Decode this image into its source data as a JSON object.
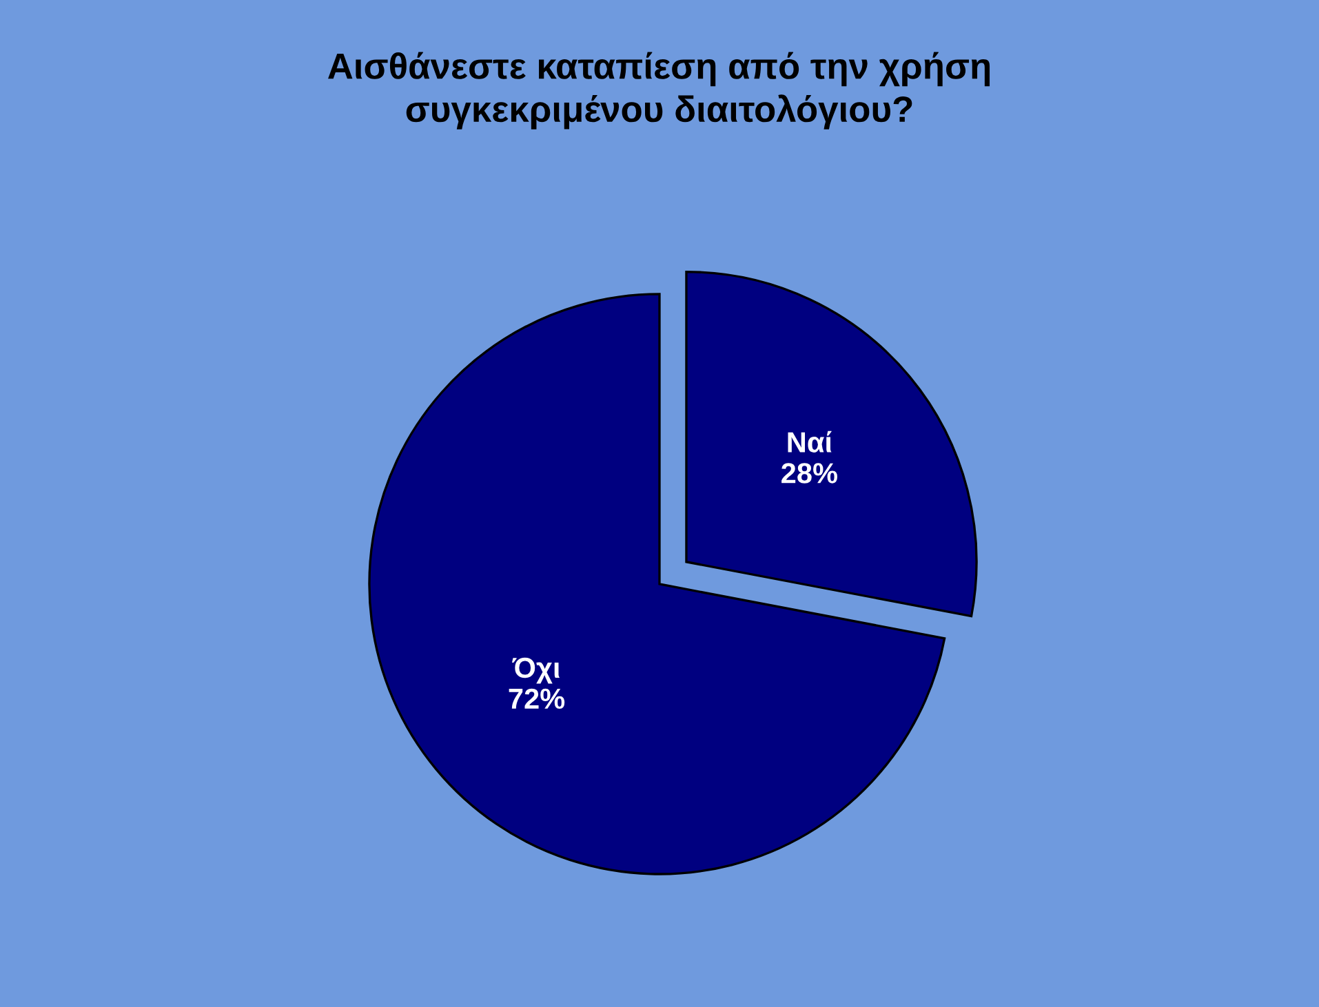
{
  "chart_data": {
    "type": "pie",
    "title": "Αισθάνεστε καταπίεση από την χρήση\nσυγκεκριμένου διαιτολόγιου?",
    "categories": [
      "Ναί",
      "Όχι"
    ],
    "values": [
      28,
      72
    ],
    "value_labels": [
      "28%",
      "72%"
    ],
    "colors": [
      "#000080",
      "#000080"
    ],
    "legend": false
  }
}
